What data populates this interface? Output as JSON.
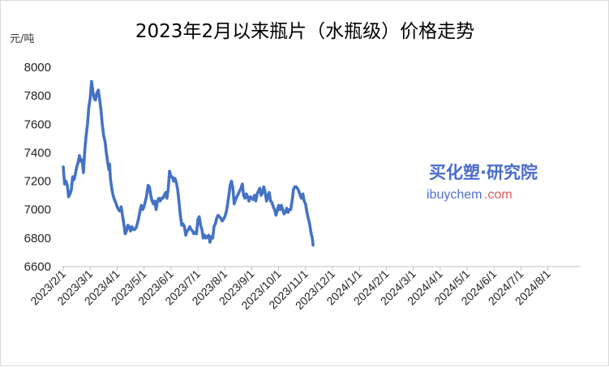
{
  "chart_data": {
    "type": "line",
    "title": "2023年2月以来瓶片（水瓶级）价格走势",
    "unit_label": "元/吨",
    "ylim": [
      6600,
      8000
    ],
    "yticks": [
      6600,
      6800,
      7000,
      7200,
      7400,
      7600,
      7800,
      8000
    ],
    "grid": false,
    "legend": "none",
    "line_color": "#4472C4",
    "x_tick_labels": [
      "2023/2/1",
      "2023/3/1",
      "2023/4/1",
      "2023/5/1",
      "2023/6/1",
      "2023/7/1",
      "2023/8/1",
      "2023/9/1",
      "2023/10/1",
      "2023/11/1",
      "2023/12/1",
      "2024/1/1",
      "2024/2/1",
      "2024/3/1",
      "2024/4/1",
      "2024/5/1",
      "2024/6/1",
      "2024/7/1",
      "2024/8/1"
    ],
    "series": [
      {
        "values": [
          [
            0,
            7300
          ],
          [
            0.05,
            7180
          ],
          [
            0.1,
            7200
          ],
          [
            0.15,
            7170
          ],
          [
            0.2,
            7090
          ],
          [
            0.25,
            7110
          ],
          [
            0.3,
            7140
          ],
          [
            0.35,
            7230
          ],
          [
            0.4,
            7210
          ],
          [
            0.45,
            7250
          ],
          [
            0.5,
            7300
          ],
          [
            0.55,
            7330
          ],
          [
            0.6,
            7380
          ],
          [
            0.65,
            7340
          ],
          [
            0.7,
            7350
          ],
          [
            0.75,
            7260
          ],
          [
            0.8,
            7420
          ],
          [
            0.85,
            7520
          ],
          [
            0.9,
            7600
          ],
          [
            0.95,
            7720
          ],
          [
            1.0,
            7780
          ],
          [
            1.05,
            7900
          ],
          [
            1.1,
            7830
          ],
          [
            1.15,
            7780
          ],
          [
            1.2,
            7770
          ],
          [
            1.25,
            7820
          ],
          [
            1.3,
            7840
          ],
          [
            1.35,
            7780
          ],
          [
            1.4,
            7700
          ],
          [
            1.45,
            7600
          ],
          [
            1.5,
            7520
          ],
          [
            1.55,
            7480
          ],
          [
            1.6,
            7400
          ],
          [
            1.65,
            7330
          ],
          [
            1.7,
            7280
          ],
          [
            1.72,
            7320
          ],
          [
            1.75,
            7220
          ],
          [
            1.8,
            7150
          ],
          [
            1.85,
            7100
          ],
          [
            1.9,
            7070
          ],
          [
            1.95,
            7050
          ],
          [
            2.0,
            7020
          ],
          [
            2.05,
            7000
          ],
          [
            2.1,
            6990
          ],
          [
            2.15,
            7020
          ],
          [
            2.2,
            6960
          ],
          [
            2.25,
            6900
          ],
          [
            2.3,
            6830
          ],
          [
            2.35,
            6850
          ],
          [
            2.4,
            6890
          ],
          [
            2.45,
            6880
          ],
          [
            2.5,
            6850
          ],
          [
            2.55,
            6880
          ],
          [
            2.6,
            6860
          ],
          [
            2.65,
            6860
          ],
          [
            2.7,
            6870
          ],
          [
            2.75,
            6900
          ],
          [
            2.8,
            6940
          ],
          [
            2.85,
            6990
          ],
          [
            2.9,
            7030
          ],
          [
            2.95,
            7000
          ],
          [
            3.0,
            7020
          ],
          [
            3.05,
            7060
          ],
          [
            3.1,
            7100
          ],
          [
            3.15,
            7170
          ],
          [
            3.2,
            7160
          ],
          [
            3.25,
            7100
          ],
          [
            3.3,
            7060
          ],
          [
            3.35,
            7040
          ],
          [
            3.4,
            7060
          ],
          [
            3.45,
            7000
          ],
          [
            3.5,
            7060
          ],
          [
            3.55,
            7080
          ],
          [
            3.6,
            7060
          ],
          [
            3.65,
            7080
          ],
          [
            3.7,
            7080
          ],
          [
            3.75,
            7100
          ],
          [
            3.8,
            7120
          ],
          [
            3.85,
            7080
          ],
          [
            3.9,
            7150
          ],
          [
            3.95,
            7270
          ],
          [
            4.0,
            7230
          ],
          [
            4.05,
            7230
          ],
          [
            4.1,
            7200
          ],
          [
            4.15,
            7220
          ],
          [
            4.2,
            7190
          ],
          [
            4.25,
            7140
          ],
          [
            4.3,
            7050
          ],
          [
            4.35,
            6960
          ],
          [
            4.4,
            6890
          ],
          [
            4.45,
            6900
          ],
          [
            4.5,
            6880
          ],
          [
            4.55,
            6820
          ],
          [
            4.6,
            6850
          ],
          [
            4.65,
            6860
          ],
          [
            4.7,
            6880
          ],
          [
            4.75,
            6860
          ],
          [
            4.8,
            6850
          ],
          [
            4.85,
            6830
          ],
          [
            4.9,
            6840
          ],
          [
            4.95,
            6830
          ],
          [
            5.0,
            6930
          ],
          [
            5.05,
            6950
          ],
          [
            5.1,
            6890
          ],
          [
            5.15,
            6860
          ],
          [
            5.2,
            6800
          ],
          [
            5.25,
            6820
          ],
          [
            5.3,
            6800
          ],
          [
            5.35,
            6810
          ],
          [
            5.4,
            6820
          ],
          [
            5.45,
            6770
          ],
          [
            5.5,
            6810
          ],
          [
            5.55,
            6800
          ],
          [
            5.6,
            6880
          ],
          [
            5.65,
            6900
          ],
          [
            5.7,
            6940
          ],
          [
            5.75,
            6960
          ],
          [
            5.8,
            6950
          ],
          [
            5.85,
            6940
          ],
          [
            5.9,
            6920
          ],
          [
            5.95,
            6930
          ],
          [
            6.0,
            6950
          ],
          [
            6.05,
            6980
          ],
          [
            6.1,
            7030
          ],
          [
            6.15,
            7100
          ],
          [
            6.2,
            7170
          ],
          [
            6.25,
            7200
          ],
          [
            6.3,
            7150
          ],
          [
            6.35,
            7040
          ],
          [
            6.4,
            7070
          ],
          [
            6.45,
            7090
          ],
          [
            6.5,
            7110
          ],
          [
            6.55,
            7130
          ],
          [
            6.6,
            7150
          ],
          [
            6.65,
            7180
          ],
          [
            6.7,
            7100
          ],
          [
            6.75,
            7080
          ],
          [
            6.8,
            7110
          ],
          [
            6.85,
            7090
          ],
          [
            6.9,
            7060
          ],
          [
            6.95,
            7090
          ],
          [
            7.0,
            7080
          ],
          [
            7.05,
            7070
          ],
          [
            7.1,
            7100
          ],
          [
            7.15,
            7060
          ],
          [
            7.2,
            7110
          ],
          [
            7.25,
            7130
          ],
          [
            7.3,
            7150
          ],
          [
            7.35,
            7100
          ],
          [
            7.4,
            7120
          ],
          [
            7.45,
            7160
          ],
          [
            7.5,
            7120
          ],
          [
            7.55,
            7060
          ],
          [
            7.6,
            7100
          ],
          [
            7.65,
            7120
          ],
          [
            7.7,
            7060
          ],
          [
            7.75,
            7050
          ],
          [
            7.8,
            7020
          ],
          [
            7.85,
            7000
          ],
          [
            7.9,
            6960
          ],
          [
            7.95,
            6990
          ],
          [
            8.0,
            7030
          ],
          [
            8.05,
            7000
          ],
          [
            8.1,
            7030
          ],
          [
            8.15,
            7000
          ],
          [
            8.2,
            6970
          ],
          [
            8.25,
            6980
          ],
          [
            8.3,
            7010
          ],
          [
            8.35,
            6980
          ],
          [
            8.4,
            7000
          ],
          [
            8.45,
            7000
          ],
          [
            8.5,
            7060
          ],
          [
            8.55,
            7140
          ],
          [
            8.6,
            7160
          ],
          [
            8.65,
            7160
          ],
          [
            8.7,
            7150
          ],
          [
            8.75,
            7130
          ],
          [
            8.8,
            7100
          ],
          [
            8.85,
            7080
          ],
          [
            8.9,
            7110
          ],
          [
            8.95,
            7060
          ],
          [
            9.0,
            7040
          ],
          [
            9.05,
            6980
          ],
          [
            9.1,
            6940
          ],
          [
            9.15,
            6900
          ],
          [
            9.2,
            6840
          ],
          [
            9.25,
            6800
          ],
          [
            9.28,
            6750
          ]
        ]
      }
    ]
  },
  "watermark": {
    "cn": "买化塑·研究院",
    "en": "ibuychem",
    "com": ".com"
  }
}
